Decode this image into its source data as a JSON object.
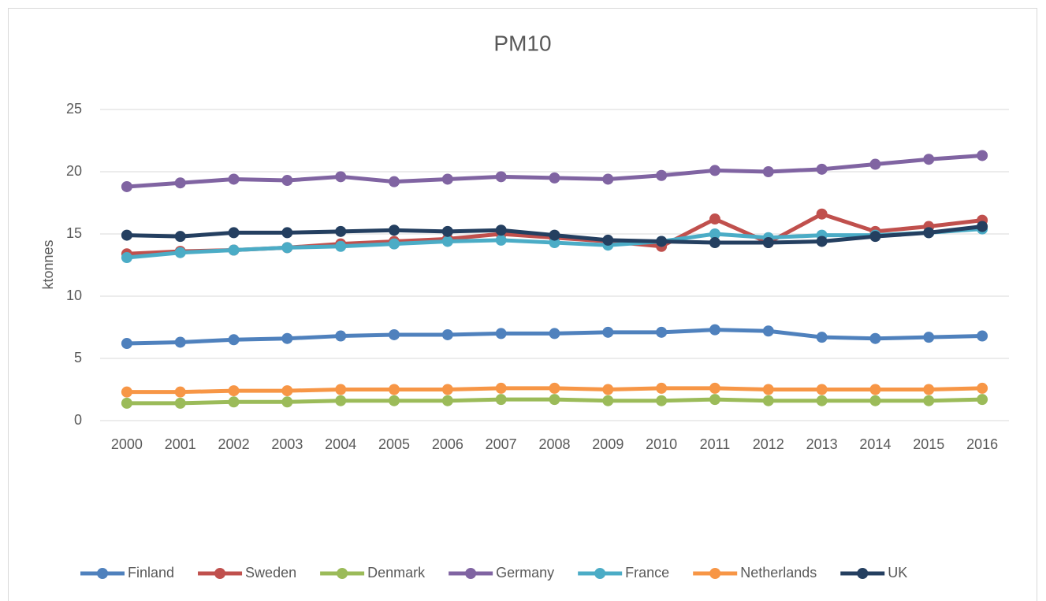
{
  "chart_data": {
    "type": "line",
    "title": "PM10",
    "y_label": "ktonnes",
    "categories": [
      "2000",
      "2001",
      "2002",
      "2003",
      "2004",
      "2005",
      "2006",
      "2007",
      "2008",
      "2009",
      "2010",
      "2011",
      "2012",
      "2013",
      "2014",
      "2015",
      "2016"
    ],
    "series": [
      {
        "name": "Finland",
        "color": "#4f81bd",
        "values": [
          6.2,
          6.3,
          6.5,
          6.6,
          6.8,
          6.9,
          6.9,
          7.0,
          7.0,
          7.1,
          7.1,
          7.3,
          7.2,
          6.7,
          6.6,
          6.7,
          6.8
        ]
      },
      {
        "name": "Sweden",
        "color": "#c0504d",
        "values": [
          13.4,
          13.6,
          13.7,
          13.9,
          14.2,
          14.4,
          14.6,
          15.0,
          14.7,
          14.4,
          14.0,
          16.2,
          14.3,
          16.6,
          15.2,
          15.6,
          16.1
        ]
      },
      {
        "name": "Denmark",
        "color": "#9bbb59",
        "values": [
          1.4,
          1.4,
          1.5,
          1.5,
          1.6,
          1.6,
          1.6,
          1.7,
          1.7,
          1.6,
          1.6,
          1.7,
          1.6,
          1.6,
          1.6,
          1.6,
          1.7
        ]
      },
      {
        "name": "Germany",
        "color": "#8064a2",
        "values": [
          18.8,
          19.1,
          19.4,
          19.3,
          19.6,
          19.2,
          19.4,
          19.6,
          19.5,
          19.4,
          19.7,
          20.1,
          20.0,
          20.2,
          20.6,
          21.0,
          21.3
        ]
      },
      {
        "name": "France",
        "color": "#4bacc6",
        "values": [
          13.1,
          13.5,
          13.7,
          13.9,
          14.0,
          14.2,
          14.4,
          14.5,
          14.3,
          14.1,
          14.4,
          15.0,
          14.7,
          14.9,
          14.9,
          15.1,
          15.4
        ]
      },
      {
        "name": "Netherlands",
        "color": "#f79646",
        "values": [
          2.3,
          2.3,
          2.4,
          2.4,
          2.5,
          2.5,
          2.5,
          2.6,
          2.6,
          2.5,
          2.6,
          2.6,
          2.5,
          2.5,
          2.5,
          2.5,
          2.6
        ]
      },
      {
        "name": "UK",
        "color": "#243f60",
        "values": [
          14.9,
          14.8,
          15.1,
          15.1,
          15.2,
          15.3,
          15.2,
          15.3,
          14.9,
          14.5,
          14.4,
          14.3,
          14.3,
          14.4,
          14.8,
          15.1,
          15.6
        ]
      }
    ],
    "ylim": [
      0,
      25
    ],
    "yticks": [
      0,
      5,
      10,
      15,
      20,
      25
    ],
    "grid": true,
    "legend": "bottom"
  }
}
